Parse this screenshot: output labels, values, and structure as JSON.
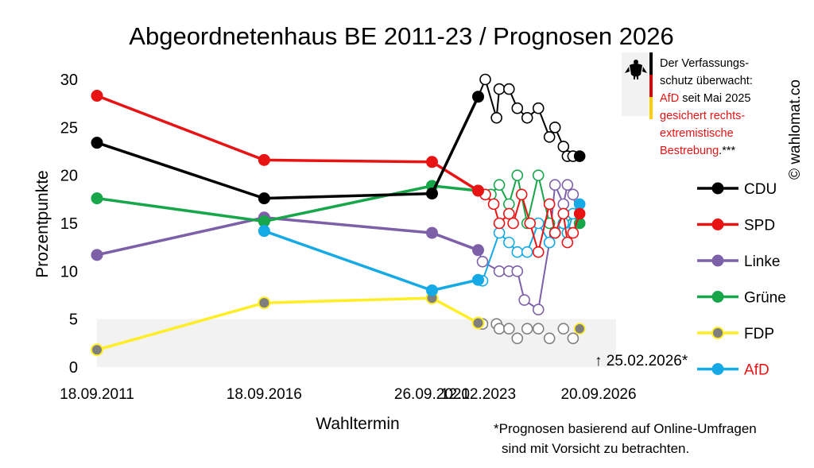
{
  "chart_data": {
    "type": "line",
    "title": "Abgeordnetenhaus BE 2011-23 / Prognosen 2026",
    "xlabel": "Wahltermin",
    "ylabel": "Prozentpunkte",
    "ylim": [
      0,
      30
    ],
    "yticks": [
      "0",
      "5",
      "10",
      "15",
      "20",
      "25",
      "30"
    ],
    "xticks": [
      "18.09.2011",
      "18.09.2016",
      "26.09.2021",
      "12.02.2023",
      "20.09.2026"
    ],
    "grid": false,
    "legend_position": "right",
    "threshold_band": [
      0,
      5
    ],
    "series": [
      {
        "name": "CDU",
        "color": "#000000",
        "elections": [
          [
            "2011-09-18",
            23.4
          ],
          [
            "2016-09-18",
            17.6
          ],
          [
            "2021-09-26",
            18.1
          ],
          [
            "2023-02-12",
            28.2
          ]
        ],
        "polls": [
          [
            "2023-02-12",
            28.2
          ],
          [
            "2023-05-01",
            30
          ],
          [
            "2023-09-01",
            26
          ],
          [
            "2023-10-01",
            29
          ],
          [
            "2024-01-15",
            29
          ],
          [
            "2024-04-15",
            27
          ],
          [
            "2024-08-01",
            26
          ],
          [
            "2024-12-01",
            27
          ],
          [
            "2025-04-01",
            24
          ],
          [
            "2025-06-01",
            25
          ],
          [
            "2025-09-01",
            23
          ],
          [
            "2025-10-15",
            22
          ],
          [
            "2025-12-15",
            22
          ],
          [
            "2026-02-25",
            22
          ]
        ]
      },
      {
        "name": "SPD",
        "color": "#e81313",
        "elections": [
          [
            "2011-09-18",
            28.3
          ],
          [
            "2016-09-18",
            21.6
          ],
          [
            "2021-09-26",
            21.4
          ],
          [
            "2023-02-12",
            18.4
          ]
        ],
        "polls": [
          [
            "2023-02-12",
            18.4
          ],
          [
            "2023-05-01",
            18
          ],
          [
            "2023-08-01",
            17
          ],
          [
            "2023-10-01",
            15
          ],
          [
            "2024-01-15",
            16
          ],
          [
            "2024-03-01",
            15
          ],
          [
            "2024-06-01",
            18
          ],
          [
            "2024-09-01",
            15
          ],
          [
            "2024-12-01",
            12
          ],
          [
            "2025-04-01",
            17
          ],
          [
            "2025-06-01",
            14
          ],
          [
            "2025-09-01",
            16
          ],
          [
            "2025-10-15",
            13
          ],
          [
            "2025-12-15",
            14
          ],
          [
            "2026-02-25",
            16
          ]
        ]
      },
      {
        "name": "Linke",
        "color": "#7d60a8",
        "elections": [
          [
            "2011-09-18",
            11.7
          ],
          [
            "2016-09-18",
            15.6
          ],
          [
            "2021-09-26",
            14.0
          ],
          [
            "2023-02-12",
            12.2
          ]
        ],
        "polls": [
          [
            "2023-02-12",
            12.2
          ],
          [
            "2023-04-01",
            11
          ],
          [
            "2023-10-01",
            10
          ],
          [
            "2024-01-15",
            10
          ],
          [
            "2024-04-15",
            10
          ],
          [
            "2024-07-01",
            7
          ],
          [
            "2024-12-01",
            6
          ],
          [
            "2025-04-01",
            13
          ],
          [
            "2025-06-01",
            19
          ],
          [
            "2025-09-01",
            17
          ],
          [
            "2025-10-15",
            19
          ],
          [
            "2025-12-15",
            18
          ],
          [
            "2026-02-25",
            15
          ]
        ]
      },
      {
        "name": "Grüne",
        "color": "#17a64a",
        "elections": [
          [
            "2011-09-18",
            17.6
          ],
          [
            "2016-09-18",
            15.2
          ],
          [
            "2021-09-26",
            18.9
          ],
          [
            "2023-02-12",
            18.4
          ]
        ],
        "polls": [
          [
            "2023-02-12",
            18.4
          ],
          [
            "2023-07-01",
            18
          ],
          [
            "2023-10-01",
            19
          ],
          [
            "2024-01-15",
            17
          ],
          [
            "2024-04-15",
            20
          ],
          [
            "2024-08-01",
            15
          ],
          [
            "2024-12-01",
            20
          ],
          [
            "2025-04-01",
            15
          ],
          [
            "2025-06-01",
            14
          ],
          [
            "2025-09-01",
            15
          ],
          [
            "2025-10-15",
            14
          ],
          [
            "2025-12-15",
            15
          ],
          [
            "2026-02-25",
            15
          ]
        ]
      },
      {
        "name": "FDP",
        "color": "#ffee26",
        "elections": [
          [
            "2011-09-18",
            1.8
          ],
          [
            "2016-09-18",
            6.7
          ],
          [
            "2021-09-26",
            7.2
          ],
          [
            "2023-02-12",
            4.6
          ]
        ],
        "polls": [
          [
            "2023-02-12",
            4.6
          ],
          [
            "2023-04-01",
            4.5
          ],
          [
            "2023-09-01",
            4.5
          ],
          [
            "2023-10-01",
            4
          ],
          [
            "2024-01-15",
            4
          ],
          [
            "2024-04-15",
            3
          ],
          [
            "2024-08-01",
            4
          ],
          [
            "2024-12-01",
            4
          ],
          [
            "2025-04-01",
            3
          ],
          [
            "2025-09-01",
            4
          ],
          [
            "2025-12-15",
            3
          ],
          [
            "2026-02-25",
            4
          ]
        ]
      },
      {
        "name": "AfD",
        "color": "#15a9e6",
        "elections": [
          [
            "2016-09-18",
            14.2
          ],
          [
            "2021-09-26",
            8.0
          ],
          [
            "2023-02-12",
            9.1
          ]
        ],
        "polls": [
          [
            "2023-02-12",
            9.1
          ],
          [
            "2023-04-01",
            9
          ],
          [
            "2023-10-01",
            14
          ],
          [
            "2024-01-15",
            13
          ],
          [
            "2024-04-15",
            12
          ],
          [
            "2024-08-01",
            12
          ],
          [
            "2024-12-01",
            15
          ],
          [
            "2025-04-01",
            13
          ],
          [
            "2025-06-01",
            14
          ],
          [
            "2025-09-01",
            15
          ],
          [
            "2025-10-15",
            14
          ],
          [
            "2025-12-15",
            16
          ],
          [
            "2026-02-25",
            17
          ]
        ]
      }
    ]
  },
  "annotations": {
    "poll_date": "↑ 25.02.2026*",
    "footnote_line1": "*Prognosen basierend auf Online-Umfragen",
    "footnote_line2": "sind mit Vorsicht zu betrachten.",
    "verfassungsschutz_line1": "Der Verfassungs-",
    "verfassungsschutz_line2": "schutz überwacht:",
    "verfassungsschutz_line3_party": "AfD",
    "verfassungsschutz_line3_rest": " seit Mai 2025",
    "verfassungsschutz_line4": "gesichert rechts-",
    "verfassungsschutz_line5": "extremistische",
    "verfassungsschutz_line6_red": "Bestrebung",
    "verfassungsschutz_line6_rest": ".***",
    "watermark": "© wahlomat.co",
    "emblem": "bundesadler-icon"
  },
  "legend_label_colors": {
    "AfD": "#e81313"
  }
}
